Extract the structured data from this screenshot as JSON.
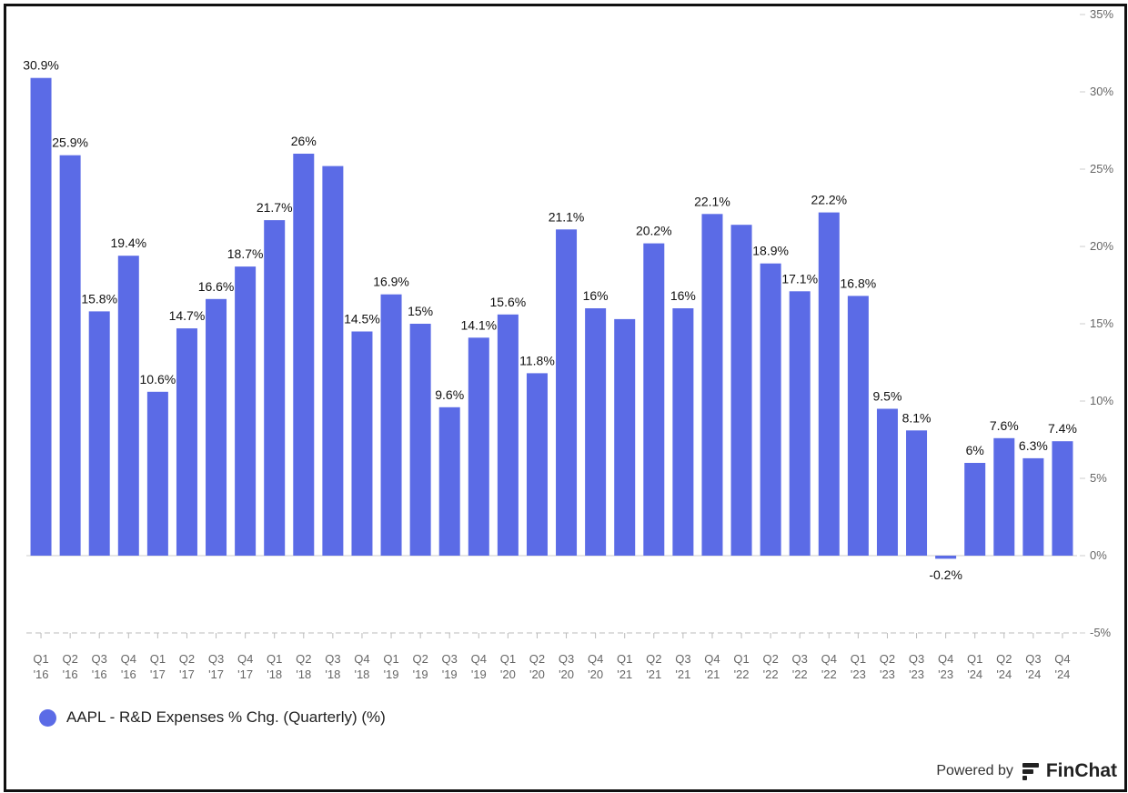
{
  "chart_data": {
    "type": "bar",
    "series": [
      {
        "name": "AAPL - R&D Expenses % Chg. (Quarterly) (%)",
        "color": "#5B6BE6",
        "values": [
          30.9,
          25.9,
          15.8,
          19.4,
          10.6,
          14.7,
          16.6,
          18.7,
          21.7,
          26,
          25.2,
          14.5,
          16.9,
          15,
          9.6,
          14.1,
          15.6,
          11.8,
          21.1,
          16,
          15.3,
          20.2,
          16,
          22.1,
          21.4,
          18.9,
          17.1,
          22.2,
          16.8,
          9.5,
          8.1,
          -0.2,
          6,
          7.6,
          6.3,
          7.4
        ]
      }
    ],
    "categories": [
      {
        "q": "Q1",
        "y": "'16"
      },
      {
        "q": "Q2",
        "y": "'16"
      },
      {
        "q": "Q3",
        "y": "'16"
      },
      {
        "q": "Q4",
        "y": "'16"
      },
      {
        "q": "Q1",
        "y": "'17"
      },
      {
        "q": "Q2",
        "y": "'17"
      },
      {
        "q": "Q3",
        "y": "'17"
      },
      {
        "q": "Q4",
        "y": "'17"
      },
      {
        "q": "Q1",
        "y": "'18"
      },
      {
        "q": "Q2",
        "y": "'18"
      },
      {
        "q": "Q3",
        "y": "'18"
      },
      {
        "q": "Q4",
        "y": "'18"
      },
      {
        "q": "Q1",
        "y": "'19"
      },
      {
        "q": "Q2",
        "y": "'19"
      },
      {
        "q": "Q3",
        "y": "'19"
      },
      {
        "q": "Q4",
        "y": "'19"
      },
      {
        "q": "Q1",
        "y": "'20"
      },
      {
        "q": "Q2",
        "y": "'20"
      },
      {
        "q": "Q3",
        "y": "'20"
      },
      {
        "q": "Q4",
        "y": "'20"
      },
      {
        "q": "Q1",
        "y": "'21"
      },
      {
        "q": "Q2",
        "y": "'21"
      },
      {
        "q": "Q3",
        "y": "'21"
      },
      {
        "q": "Q4",
        "y": "'21"
      },
      {
        "q": "Q1",
        "y": "'22"
      },
      {
        "q": "Q2",
        "y": "'22"
      },
      {
        "q": "Q3",
        "y": "'22"
      },
      {
        "q": "Q4",
        "y": "'22"
      },
      {
        "q": "Q1",
        "y": "'23"
      },
      {
        "q": "Q2",
        "y": "'23"
      },
      {
        "q": "Q3",
        "y": "'23"
      },
      {
        "q": "Q4",
        "y": "'23"
      },
      {
        "q": "Q1",
        "y": "'24"
      },
      {
        "q": "Q2",
        "y": "'24"
      },
      {
        "q": "Q3",
        "y": "'24"
      },
      {
        "q": "Q4",
        "y": "'24"
      }
    ],
    "data_labels": [
      "30.9%",
      "25.9%",
      "15.8%",
      "19.4%",
      "10.6%",
      "14.7%",
      "16.6%",
      "18.7%",
      "21.7%",
      "26%",
      "",
      "14.5%",
      "16.9%",
      "15%",
      "9.6%",
      "14.1%",
      "15.6%",
      "11.8%",
      "21.1%",
      "16%",
      "",
      "20.2%",
      "16%",
      "22.1%",
      "",
      "18.9%",
      "17.1%",
      "22.2%",
      "16.8%",
      "9.5%",
      "8.1%",
      "-0.2%",
      "6%",
      "7.6%",
      "6.3%",
      "7.4%"
    ],
    "y_ticks": [
      {
        "value": 35,
        "label": "35%"
      },
      {
        "value": 30,
        "label": "30%"
      },
      {
        "value": 25,
        "label": "25%"
      },
      {
        "value": 20,
        "label": "20%"
      },
      {
        "value": 15,
        "label": "15%"
      },
      {
        "value": 10,
        "label": "10%"
      },
      {
        "value": 5,
        "label": "5%"
      },
      {
        "value": 0,
        "label": "0%"
      },
      {
        "value": -5,
        "label": "-5%"
      }
    ],
    "ylim": [
      -5,
      35
    ],
    "y_axis_position": "right",
    "grid": false,
    "legend_position": "bottom-left"
  },
  "legend": {
    "label": "AAPL - R&D Expenses % Chg. (Quarterly) (%)"
  },
  "branding": {
    "powered_by": "Powered by",
    "brand": "FinChat",
    "icon": "finchat-logo-icon"
  }
}
